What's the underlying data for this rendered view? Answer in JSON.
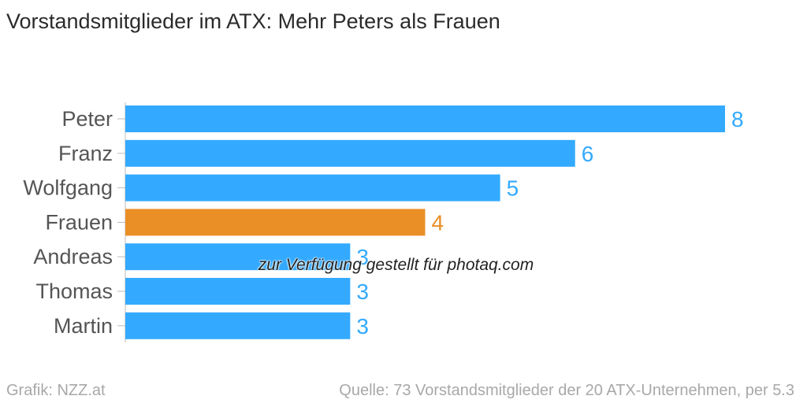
{
  "chart_data": {
    "type": "bar",
    "orientation": "horizontal",
    "title": "Vorstandsmitglieder im ATX: Mehr Peters als Frauen",
    "categories": [
      "Peter",
      "Franz",
      "Wolfgang",
      "Frauen",
      "Andreas",
      "Thomas",
      "Martin"
    ],
    "values": [
      8,
      6,
      5,
      4,
      3,
      3,
      3
    ],
    "xlim": [
      0,
      8
    ],
    "grid": false,
    "colors": {
      "default": "#33aaff",
      "highlight": "#ea8f26",
      "highlight_category": "Frauen"
    }
  },
  "footer": {
    "credit": "Grafik: NZZ.at",
    "source": "Quelle: 73 Vorstandsmitglieder der 20 ATX-Unternehmen, per 5.3"
  },
  "watermark": "zur Verfügung gestellt für photaq.com"
}
